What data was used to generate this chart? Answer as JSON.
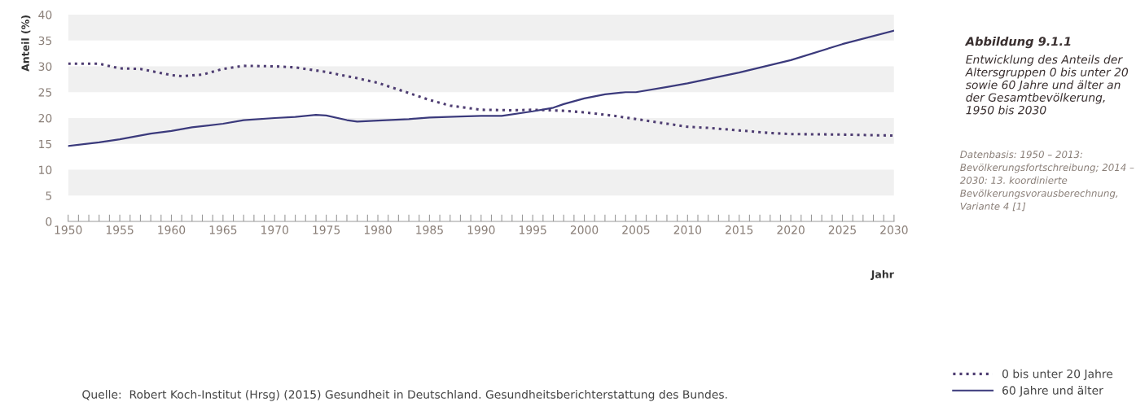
{
  "chart_data": {
    "type": "line",
    "title": "Abbildung 9.1.1",
    "subtitle": "Entwicklung des Anteils der Altersgruppen 0 bis unter 20 sowie 60 Jahre und älter an der Gesamtbevölkerung, 1950 bis 2030",
    "xlabel": "Jahr",
    "ylabel": "Anteil (%)",
    "annotations": [
      "Datenbasis: 1950 – 2013: Bevölkerungsfortschreibung; 2014 – 2030: 13. koordinierte Bevölkerungsvorausberechnung, Variante 4 [1]",
      "Quelle:  Robert Koch-Institut (Hrsg) (2015) Gesundheit in Deutschland. Gesundheitsberichterstattung des Bundes."
    ],
    "series": [
      {
        "name": "0 bis unter 20 Jahre",
        "color": "#4e3d72",
        "line_style": "dotted",
        "x": [
          1950,
          1953,
          1955,
          1957,
          1960,
          1961,
          1963,
          1965,
          1967,
          1970,
          1972,
          1975,
          1978,
          1980,
          1982,
          1985,
          1987,
          1990,
          1993,
          1995,
          1998,
          2000,
          2003,
          2005,
          2008,
          2010,
          2012,
          2015,
          2018,
          2020,
          2025,
          2030
        ],
        "values": [
          30.5,
          30.5,
          29.6,
          29.5,
          28.3,
          28.1,
          28.4,
          29.5,
          30.1,
          30.0,
          29.8,
          28.9,
          27.7,
          26.8,
          25.5,
          23.5,
          22.4,
          21.6,
          21.5,
          21.6,
          21.4,
          21.1,
          20.4,
          19.8,
          18.9,
          18.3,
          18.1,
          17.6,
          17.1,
          16.9,
          16.8,
          16.6
        ]
      },
      {
        "name": "60 Jahre und älter",
        "color": "#3b3a7c",
        "line_style": "solid",
        "x": [
          1950,
          1953,
          1955,
          1958,
          1960,
          1962,
          1965,
          1967,
          1970,
          1972,
          1974,
          1975,
          1977,
          1978,
          1980,
          1983,
          1985,
          1988,
          1990,
          1992,
          1995,
          1997,
          1998,
          2000,
          2002,
          2004,
          2005,
          2008,
          2010,
          2015,
          2020,
          2025,
          2030
        ],
        "values": [
          14.6,
          15.3,
          15.9,
          17.0,
          17.5,
          18.2,
          18.9,
          19.6,
          20.0,
          20.2,
          20.6,
          20.5,
          19.6,
          19.3,
          19.5,
          19.8,
          20.1,
          20.3,
          20.4,
          20.4,
          21.3,
          22.0,
          22.7,
          23.8,
          24.6,
          25.0,
          25.0,
          26.0,
          26.7,
          28.8,
          31.2,
          34.3,
          36.9
        ]
      }
    ],
    "xlim": [
      1950,
      2030
    ],
    "ylim": [
      0,
      40
    ],
    "xticks": [
      1950,
      {
        "value": 1951,
        "label": null
      },
      {
        "value": 1952,
        "label": null
      },
      {
        "value": 1953,
        "label": null
      },
      {
        "value": 1954,
        "label": null
      },
      1955,
      {
        "value": 1956,
        "label": null
      },
      {
        "value": 1957,
        "label": null
      },
      {
        "value": 1958,
        "label": null
      },
      {
        "value": 1959,
        "label": null
      },
      1960,
      {
        "value": 1961,
        "label": null
      },
      {
        "value": 1962,
        "label": null
      },
      {
        "value": 1963,
        "label": null
      },
      {
        "value": 1964,
        "label": null
      },
      1965,
      {
        "value": 1966,
        "label": null
      },
      {
        "value": 1967,
        "label": null
      },
      {
        "value": 1968,
        "label": null
      },
      {
        "value": 1969,
        "label": null
      },
      1970,
      {
        "value": 1971,
        "label": null
      },
      {
        "value": 1972,
        "label": null
      },
      {
        "value": 1973,
        "label": null
      },
      {
        "value": 1974,
        "label": null
      },
      1975,
      {
        "value": 1976,
        "label": null
      },
      {
        "value": 1977,
        "label": null
      },
      {
        "value": 1978,
        "label": null
      },
      {
        "value": 1979,
        "label": null
      },
      1980,
      {
        "value": 1981,
        "label": null
      },
      {
        "value": 1982,
        "label": null
      },
      {
        "value": 1983,
        "label": null
      },
      {
        "value": 1984,
        "label": null
      },
      1985,
      {
        "value": 1986,
        "label": null
      },
      {
        "value": 1987,
        "label": null
      },
      {
        "value": 1988,
        "label": null
      },
      {
        "value": 1989,
        "label": null
      },
      1990,
      {
        "value": 1991,
        "label": null
      },
      {
        "value": 1992,
        "label": null
      },
      {
        "value": 1993,
        "label": null
      },
      {
        "value": 1994,
        "label": null
      },
      1995,
      {
        "value": 1996,
        "label": null
      },
      {
        "value": 1997,
        "label": null
      },
      {
        "value": 1998,
        "label": null
      },
      {
        "value": 1999,
        "label": null
      },
      2000,
      {
        "value": 2001,
        "label": null
      },
      {
        "value": 2002,
        "label": null
      },
      {
        "value": 2003,
        "label": null
      },
      {
        "value": 2004,
        "label": null
      },
      2005,
      {
        "value": 2006,
        "label": null
      },
      {
        "value": 2007,
        "label": null
      },
      {
        "value": 2008,
        "label": null
      },
      {
        "value": 2009,
        "label": null
      },
      2010,
      {
        "value": 2011,
        "label": null
      },
      {
        "value": 2012,
        "label": null
      },
      {
        "value": 2013,
        "label": null
      },
      {
        "value": 2014,
        "label": null
      },
      2015,
      {
        "value": 2016,
        "label": null
      },
      {
        "value": 2017,
        "label": null
      },
      {
        "value": 2018,
        "label": null
      },
      {
        "value": 2019,
        "label": null
      },
      2020,
      {
        "value": 2021,
        "label": null
      },
      {
        "value": 2022,
        "label": null
      },
      {
        "value": 2023,
        "label": null
      },
      {
        "value": 2024,
        "label": null
      },
      2025,
      {
        "value": 2026,
        "label": null
      },
      {
        "value": 2027,
        "label": null
      },
      {
        "value": 2028,
        "label": null
      },
      {
        "value": 2029,
        "label": null
      },
      2030
    ],
    "yticks": [
      0,
      5,
      10,
      15,
      20,
      25,
      30,
      35,
      40
    ],
    "bands": [
      {
        "axis": "y",
        "from": 5,
        "to": 10,
        "color": "#f0f0f0"
      },
      {
        "axis": "y",
        "from": 15,
        "to": 20,
        "color": "#f0f0f0"
      },
      {
        "axis": "y",
        "from": 25,
        "to": 30,
        "color": "#f0f0f0"
      },
      {
        "axis": "y",
        "from": 35,
        "to": 40,
        "color": "#f0f0f0"
      }
    ],
    "grid": false,
    "legend": "bottom right"
  }
}
